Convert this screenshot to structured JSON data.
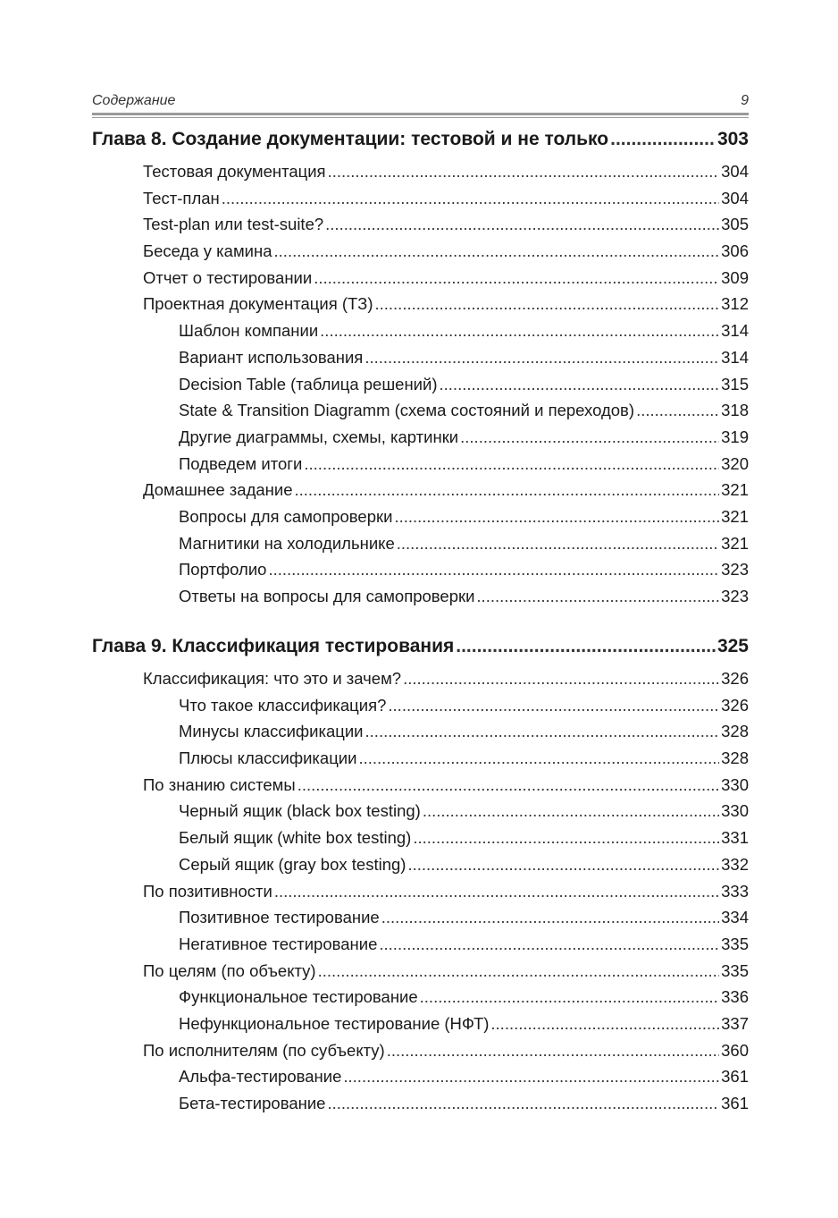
{
  "header": {
    "title": "Содержание",
    "page": "9"
  },
  "chapters": [
    {
      "title": "Глава 8. Создание документации: тестовой и не только",
      "page": "303",
      "entries": [
        {
          "level": 1,
          "title": "Тестовая документация",
          "page": "304"
        },
        {
          "level": 1,
          "title": "Тест-план",
          "page": "304"
        },
        {
          "level": 1,
          "title": "Test-plan или test-suite?",
          "page": "305"
        },
        {
          "level": 1,
          "title": "Беседа у камина",
          "page": "306"
        },
        {
          "level": 1,
          "title": "Отчет о тестировании",
          "page": "309"
        },
        {
          "level": 1,
          "title": "Проектная документация (ТЗ)",
          "page": "312"
        },
        {
          "level": 2,
          "title": "Шаблон компании",
          "page": "314"
        },
        {
          "level": 2,
          "title": "Вариант использования",
          "page": "314"
        },
        {
          "level": 2,
          "title": "Decision Table (таблица решений)",
          "page": "315"
        },
        {
          "level": 2,
          "title": "State & Transition Diagramm (схема состояний и переходов)",
          "page": "318"
        },
        {
          "level": 2,
          "title": "Другие диаграммы, схемы, картинки",
          "page": "319"
        },
        {
          "level": 2,
          "title": "Подведем итоги",
          "page": "320"
        },
        {
          "level": 1,
          "title": "Домашнее задание",
          "page": "321"
        },
        {
          "level": 2,
          "title": "Вопросы для самопроверки",
          "page": "321"
        },
        {
          "level": 2,
          "title": "Магнитики на холодильнике",
          "page": "321"
        },
        {
          "level": 2,
          "title": "Портфолио",
          "page": "323"
        },
        {
          "level": 2,
          "title": "Ответы на вопросы для самопроверки",
          "page": "323"
        }
      ]
    },
    {
      "title": "Глава 9. Классификация тестирования",
      "page": "325",
      "entries": [
        {
          "level": 1,
          "title": "Классификация: что это и зачем?",
          "page": "326"
        },
        {
          "level": 2,
          "title": "Что такое классификация?",
          "page": "326"
        },
        {
          "level": 2,
          "title": "Минусы классификации",
          "page": "328"
        },
        {
          "level": 2,
          "title": "Плюсы классификации",
          "page": "328"
        },
        {
          "level": 1,
          "title": "По знанию системы",
          "page": "330"
        },
        {
          "level": 2,
          "title": "Черный ящик (black box testing)",
          "page": "330"
        },
        {
          "level": 2,
          "title": "Белый ящик (white box testing)",
          "page": "331"
        },
        {
          "level": 2,
          "title": "Серый ящик (gray box testing)",
          "page": "332"
        },
        {
          "level": 1,
          "title": "По позитивности",
          "page": "333"
        },
        {
          "level": 2,
          "title": "Позитивное тестирование",
          "page": "334"
        },
        {
          "level": 2,
          "title": "Негативное тестирование",
          "page": "335"
        },
        {
          "level": 1,
          "title": "По целям (по объекту)",
          "page": "335"
        },
        {
          "level": 2,
          "title": "Функциональное тестирование",
          "page": "336"
        },
        {
          "level": 2,
          "title": "Нефункциональное тестирование (НФТ)",
          "page": "337"
        },
        {
          "level": 1,
          "title": "По исполнителям (по субъекту)",
          "page": "360"
        },
        {
          "level": 2,
          "title": "Альфа-тестирование",
          "page": "361"
        },
        {
          "level": 2,
          "title": "Бета-тестирование",
          "page": "361"
        }
      ]
    }
  ]
}
